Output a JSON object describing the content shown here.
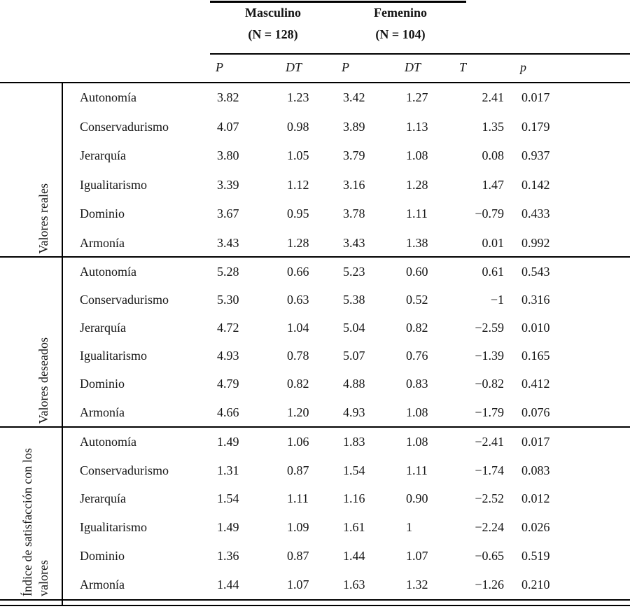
{
  "table": {
    "col_groups": [
      {
        "label": "Masculino",
        "n": "(N = 128)"
      },
      {
        "label": "Femenino",
        "n": "(N = 104)"
      }
    ],
    "sub_headers": {
      "p_masc": "P",
      "dt_masc": "DT",
      "p_fem": "P",
      "dt_fem": "DT",
      "t": "T",
      "p": "p"
    },
    "groups": [
      {
        "label": "Valores reales",
        "rows": [
          {
            "label": "Autonomía",
            "cells": [
              "3.82",
              "1.23",
              "3.42",
              "1.27",
              "2.41",
              "0.017"
            ]
          },
          {
            "label": "Conservadurismo",
            "cells": [
              "4.07",
              "0.98",
              "3.89",
              "1.13",
              "1.35",
              "0.179"
            ]
          },
          {
            "label": "Jerarquía",
            "cells": [
              "3.80",
              "1.05",
              "3.79",
              "1.08",
              "0.08",
              "0.937"
            ]
          },
          {
            "label": "Igualitarismo",
            "cells": [
              "3.39",
              "1.12",
              "3.16",
              "1.28",
              "1.47",
              "0.142"
            ]
          },
          {
            "label": "Dominio",
            "cells": [
              "3.67",
              "0.95",
              "3.78",
              "1.11",
              "−0.79",
              "0.433"
            ]
          },
          {
            "label": "Armonía",
            "cells": [
              "3.43",
              "1.28",
              "3.43",
              "1.38",
              "0.01",
              "0.992"
            ]
          }
        ]
      },
      {
        "label": "Valores deseados",
        "rows": [
          {
            "label": "Autonomía",
            "cells": [
              "5.28",
              "0.66",
              "5.23",
              "0.60",
              "0.61",
              "0.543"
            ]
          },
          {
            "label": "Conservadurismo",
            "cells": [
              "5.30",
              "0.63",
              "5.38",
              "0.52",
              "−1",
              "0.316"
            ]
          },
          {
            "label": "Jerarquía",
            "cells": [
              "4.72",
              "1.04",
              "5.04",
              "0.82",
              "−2.59",
              "0.010"
            ]
          },
          {
            "label": "Igualitarismo",
            "cells": [
              "4.93",
              "0.78",
              "5.07",
              "0.76",
              "−1.39",
              "0.165"
            ]
          },
          {
            "label": "Dominio",
            "cells": [
              "4.79",
              "0.82",
              "4.88",
              "0.83",
              "−0.82",
              "0.412"
            ]
          },
          {
            "label": "Armonía",
            "cells": [
              "4.66",
              "1.20",
              "4.93",
              "1.08",
              "−1.79",
              "0.076"
            ]
          }
        ]
      },
      {
        "label": "Índice de satisfacción con los valores",
        "rows": [
          {
            "label": "Autonomía",
            "cells": [
              "1.49",
              "1.06",
              "1.83",
              "1.08",
              "−2.41",
              "0.017"
            ]
          },
          {
            "label": "Conservadurismo",
            "cells": [
              "1.31",
              "0.87",
              "1.54",
              "1.11",
              "−1.74",
              "0.083"
            ]
          },
          {
            "label": "Jerarquía",
            "cells": [
              "1.54",
              "1.11",
              "1.16",
              "0.90",
              "−2.52",
              "0.012"
            ]
          },
          {
            "label": "Igualitarismo",
            "cells": [
              "1.49",
              "1.09",
              "1.61",
              "1",
              "−2.24",
              "0.026"
            ]
          },
          {
            "label": "Dominio",
            "cells": [
              "1.36",
              "0.87",
              "1.44",
              "1.07",
              "−0.65",
              "0.519"
            ]
          },
          {
            "label": "Armonía",
            "cells": [
              "1.44",
              "1.07",
              "1.63",
              "1.32",
              "−1.26",
              "0.210"
            ]
          }
        ]
      }
    ]
  }
}
